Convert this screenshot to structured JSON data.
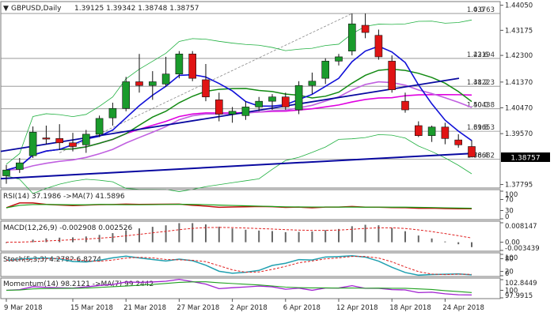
{
  "chart_data": {
    "type": "candlestick",
    "symbol": "GBPUSD",
    "timeframe": "Daily",
    "header": {
      "name": "GBPUSD,Daily",
      "ohlc": "1.39125 1.39342 1.38748 1.38757"
    },
    "current_price_label": "1.38757",
    "ylim": [
      1.377,
      1.4415
    ],
    "price_ticks": [
      "1.44050",
      "1.43175",
      "1.42300",
      "1.41370",
      "1.40470",
      "1.39570",
      "1.38757",
      "1.37795"
    ],
    "x_labels": [
      "9 Mar 2018",
      "15 Mar 2018",
      "21 Mar 2018",
      "27 Mar 2018",
      "2 Apr 2018",
      "6 Apr 2018",
      "12 Apr 2018",
      "18 Apr 2018",
      "24 Apr 2018"
    ],
    "x_label_bars": [
      0,
      5,
      9,
      13,
      17,
      21,
      25,
      29,
      33
    ],
    "candles": [
      {
        "o": 1.381,
        "h": 1.3848,
        "l": 1.3782,
        "c": 1.383
      },
      {
        "o": 1.3832,
        "h": 1.3872,
        "l": 1.382,
        "c": 1.3855
      },
      {
        "o": 1.388,
        "h": 1.3982,
        "l": 1.3872,
        "c": 1.3962
      },
      {
        "o": 1.3942,
        "h": 1.3985,
        "l": 1.392,
        "c": 1.3938
      },
      {
        "o": 1.394,
        "h": 1.399,
        "l": 1.39,
        "c": 1.3925
      },
      {
        "o": 1.3925,
        "h": 1.396,
        "l": 1.3895,
        "c": 1.3912
      },
      {
        "o": 1.3918,
        "h": 1.397,
        "l": 1.389,
        "c": 1.3955
      },
      {
        "o": 1.3955,
        "h": 1.402,
        "l": 1.3945,
        "c": 1.401
      },
      {
        "o": 1.4012,
        "h": 1.4065,
        "l": 1.3985,
        "c": 1.4045
      },
      {
        "o": 1.4045,
        "h": 1.4155,
        "l": 1.4035,
        "c": 1.4138
      },
      {
        "o": 1.4138,
        "h": 1.4235,
        "l": 1.41,
        "c": 1.4125
      },
      {
        "o": 1.4125,
        "h": 1.4175,
        "l": 1.4075,
        "c": 1.4138
      },
      {
        "o": 1.413,
        "h": 1.4225,
        "l": 1.412,
        "c": 1.4165
      },
      {
        "o": 1.4165,
        "h": 1.4245,
        "l": 1.415,
        "c": 1.4235
      },
      {
        "o": 1.4235,
        "h": 1.4245,
        "l": 1.414,
        "c": 1.415
      },
      {
        "o": 1.4145,
        "h": 1.42,
        "l": 1.407,
        "c": 1.4085
      },
      {
        "o": 1.4075,
        "h": 1.41,
        "l": 1.4,
        "c": 1.4025
      },
      {
        "o": 1.4025,
        "h": 1.405,
        "l": 1.3995,
        "c": 1.4035
      },
      {
        "o": 1.402,
        "h": 1.407,
        "l": 1.4005,
        "c": 1.405
      },
      {
        "o": 1.405,
        "h": 1.4085,
        "l": 1.4035,
        "c": 1.407
      },
      {
        "o": 1.407,
        "h": 1.4095,
        "l": 1.404,
        "c": 1.4085
      },
      {
        "o": 1.4085,
        "h": 1.41,
        "l": 1.404,
        "c": 1.405
      },
      {
        "o": 1.404,
        "h": 1.414,
        "l": 1.4025,
        "c": 1.4125
      },
      {
        "o": 1.4125,
        "h": 1.417,
        "l": 1.4095,
        "c": 1.414
      },
      {
        "o": 1.415,
        "h": 1.422,
        "l": 1.413,
        "c": 1.421
      },
      {
        "o": 1.421,
        "h": 1.4235,
        "l": 1.4195,
        "c": 1.4225
      },
      {
        "o": 1.4245,
        "h": 1.4376,
        "l": 1.423,
        "c": 1.434
      },
      {
        "o": 1.4335,
        "h": 1.4376,
        "l": 1.429,
        "c": 1.431
      },
      {
        "o": 1.43,
        "h": 1.432,
        "l": 1.4215,
        "c": 1.4225
      },
      {
        "o": 1.421,
        "h": 1.423,
        "l": 1.41,
        "c": 1.411
      },
      {
        "o": 1.407,
        "h": 1.41,
        "l": 1.403,
        "c": 1.404
      },
      {
        "o": 1.3985,
        "h": 1.4,
        "l": 1.3945,
        "c": 1.395
      },
      {
        "o": 1.395,
        "h": 1.3985,
        "l": 1.3928,
        "c": 1.398
      },
      {
        "o": 1.398,
        "h": 1.3995,
        "l": 1.392,
        "c": 1.394
      },
      {
        "o": 1.3935,
        "h": 1.3955,
        "l": 1.3908,
        "c": 1.3918
      },
      {
        "o": 1.3912,
        "h": 1.3934,
        "l": 1.3875,
        "c": 1.3876
      }
    ],
    "fibonacci": [
      {
        "ratio": "0.0",
        "value": "1.43763"
      },
      {
        "ratio": "23.6",
        "value": "1.42194"
      },
      {
        "ratio": "38.2",
        "value": "1.41223"
      },
      {
        "ratio": "50.0",
        "value": "1.40438"
      },
      {
        "ratio": "61.8",
        "value": "1.39653"
      },
      {
        "ratio": "76.4",
        "value": "1.38682"
      }
    ],
    "colors": {
      "bull": "#1a9b2c",
      "bear": "#e01414",
      "sma_fast": "#1010d8",
      "sma_slow_green": "#128a12",
      "sma_violet": "#c060e0",
      "ma_magenta": "#e000e0",
      "trend_blue": "#0808a0",
      "bollinger": "#20b040"
    },
    "indicators": {
      "rsi": {
        "label": "RSI(14) 37.1986 ->MA(7) 41.5896",
        "ticks": [
          "100",
          "70",
          "30",
          "0"
        ]
      },
      "macd": {
        "label": "MACD(12,26,9) -0.002908 0.002526",
        "ticks": [
          "0.008147",
          "0.00",
          "-0.003439"
        ]
      },
      "stoch": {
        "label": "Stoch(5,3,3) 4.2782 6.8274",
        "ticks": [
          "100",
          "80",
          "20",
          "0"
        ]
      },
      "momentum": {
        "label": "Momentum(14) 98.2121 ->MA(7) 99.2442",
        "ticks": [
          "102.8449",
          "100",
          "97.9915"
        ]
      }
    }
  }
}
